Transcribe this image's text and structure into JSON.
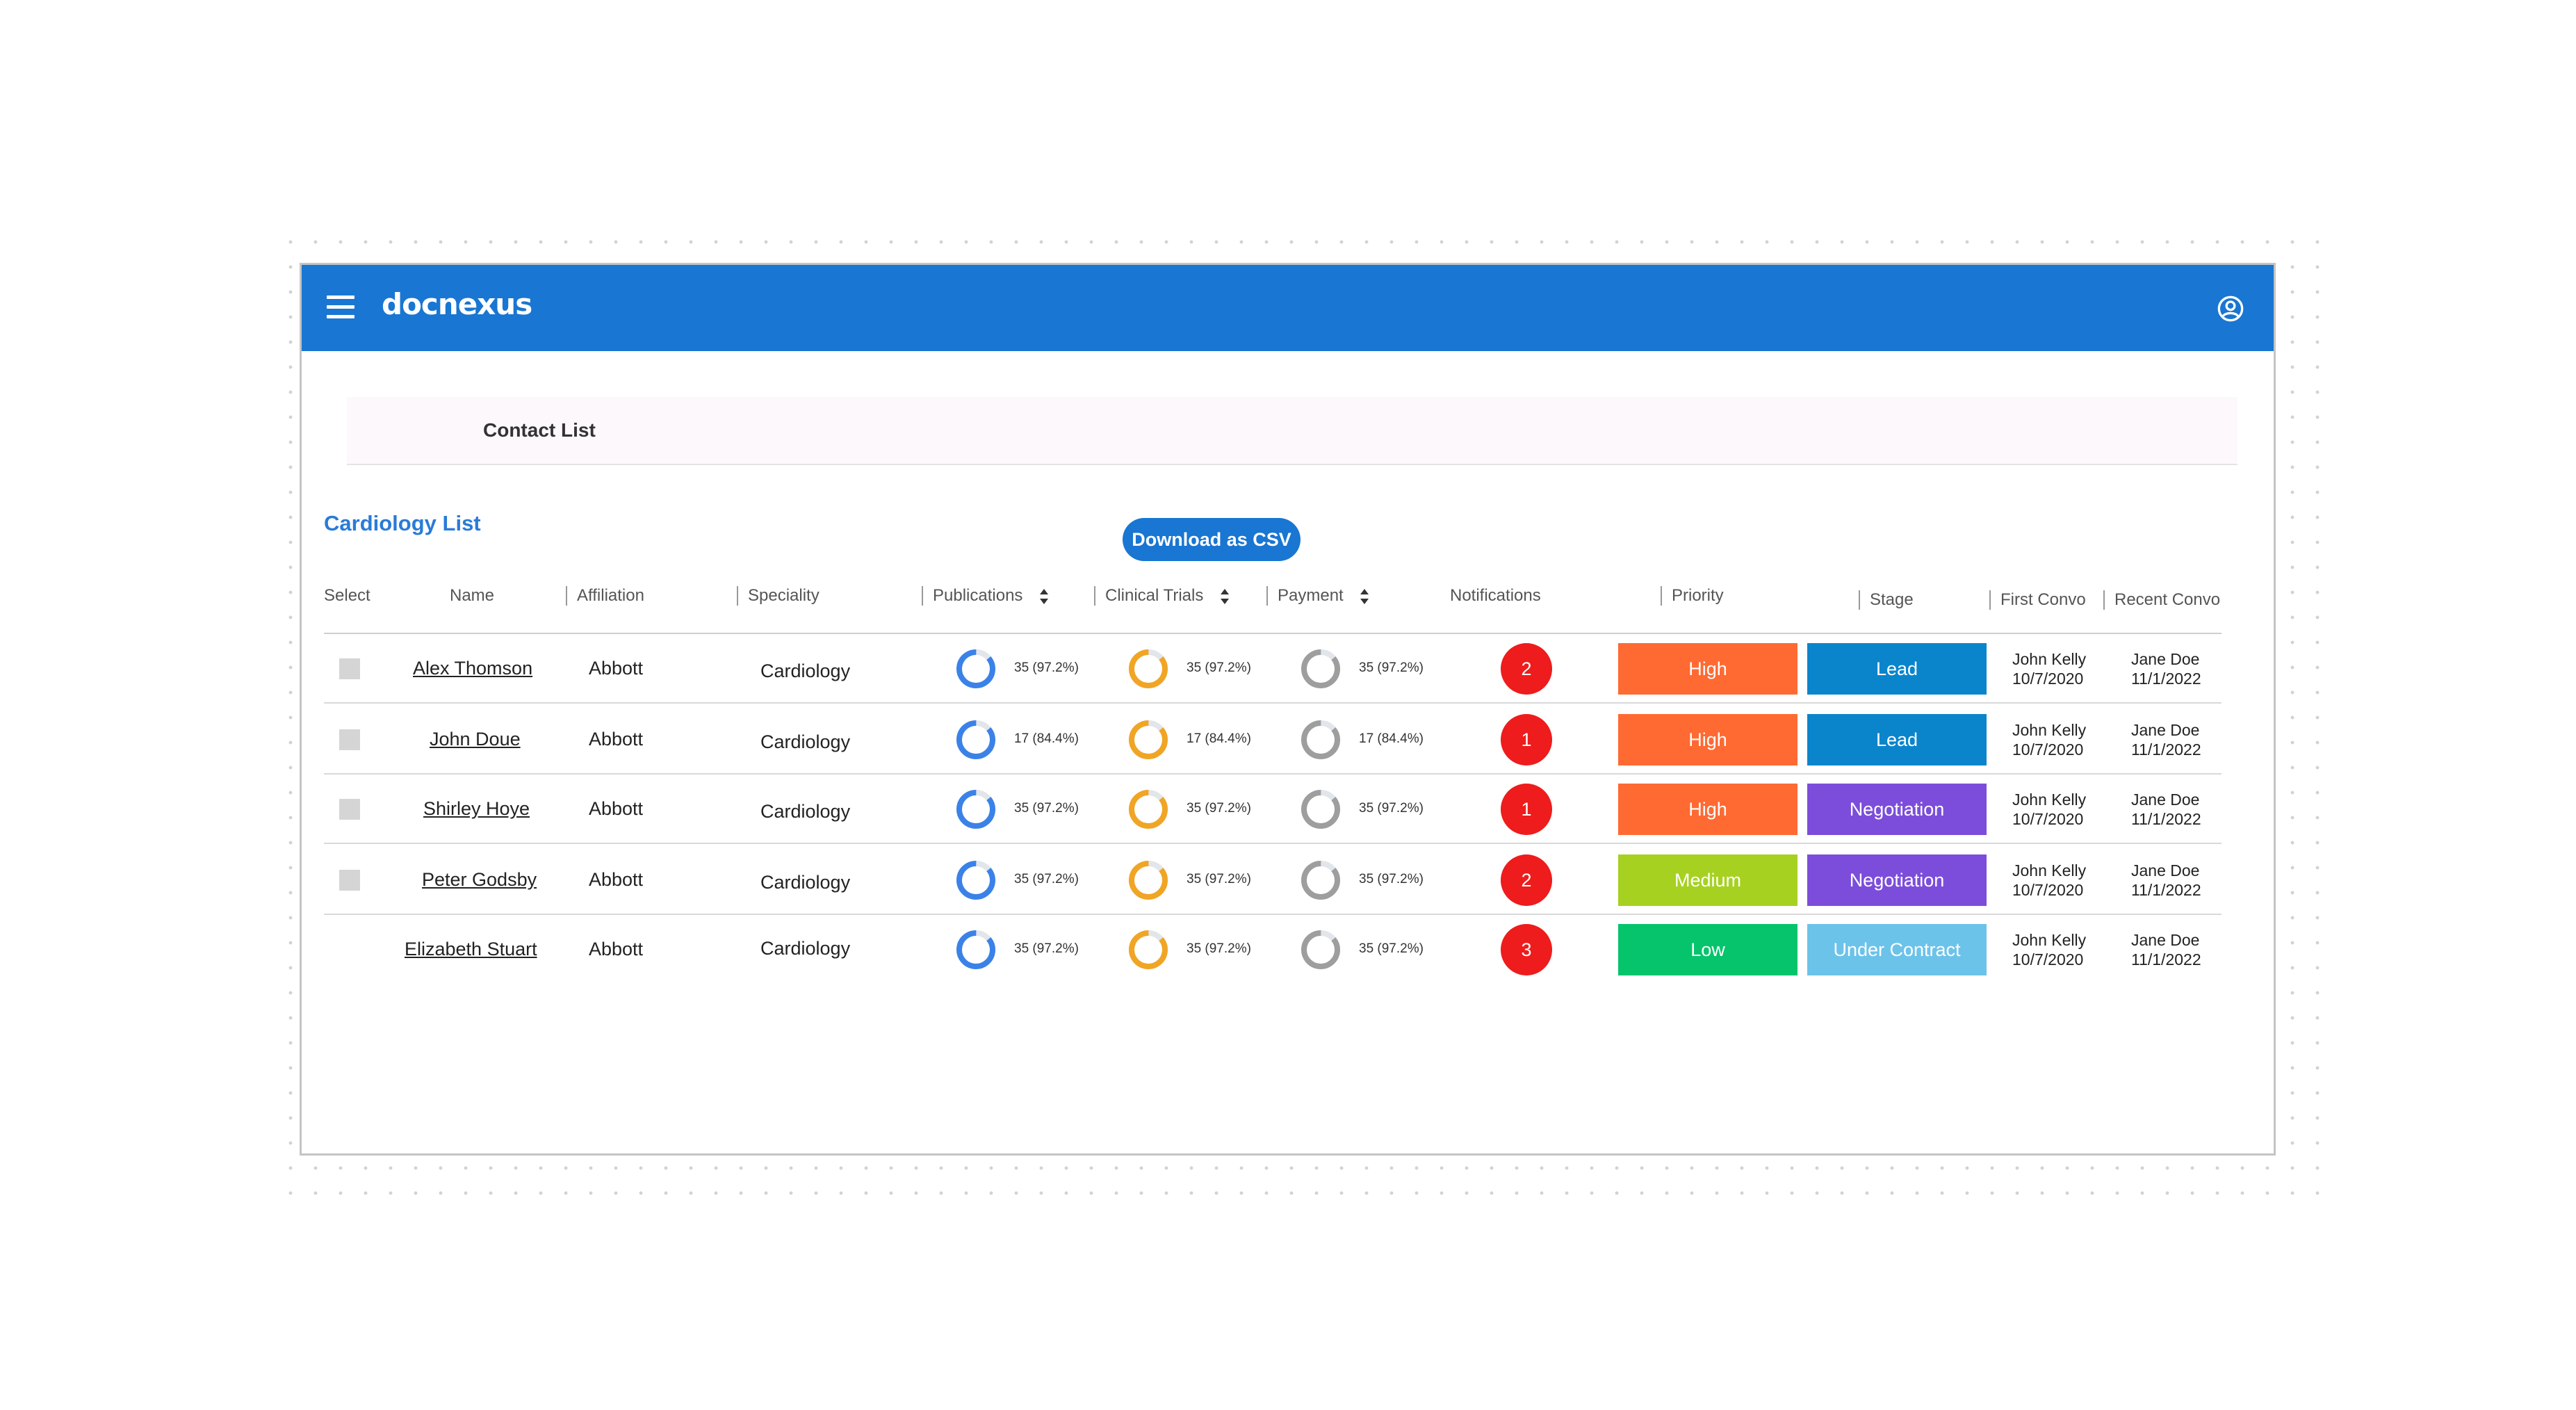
{
  "app": {
    "brand": "docnexus"
  },
  "breadcrumb": {
    "label": "Contact List"
  },
  "list": {
    "title": "Cardiology List",
    "download_label": "Download as CSV"
  },
  "columns": {
    "select": "Select",
    "name": "Name",
    "affiliation": "Affiliation",
    "speciality": "Speciality",
    "publications": "Publications",
    "clinical_trials": "Clinical Trials",
    "payment": "Payment",
    "notifications": "Notifications",
    "priority": "Priority",
    "stage": "Stage",
    "first_convo": "First Convo",
    "recent_convo": "Recent Convo"
  },
  "colors": {
    "appbar": "#1976d2",
    "publications_ring": "#3b82e8",
    "trials_ring": "#f0a524",
    "payment_ring": "#9e9e9e",
    "notification": "#ee1c1c",
    "priority_high": "#ff6a33",
    "priority_medium": "#a6d121",
    "priority_low": "#06c46b",
    "stage_lead": "#0a85cc",
    "stage_negotiation": "#7c4ddb",
    "stage_under_contract": "#6cc3ea"
  },
  "rows": [
    {
      "name": "Alex Thomson",
      "affiliation": "Abbott",
      "speciality": "Cardiology",
      "publications": "35 (97.2%)",
      "clinical_trials": "35 (97.2%)",
      "payment": "35 (97.2%)",
      "notifications": "2",
      "priority": "High",
      "stage": "Lead",
      "first_convo_name": "John Kelly",
      "first_convo_date": "10/7/2020",
      "recent_convo_name": "Jane Doe",
      "recent_convo_date": "11/1/2022"
    },
    {
      "name": "John Doue",
      "affiliation": "Abbott",
      "speciality": "Cardiology",
      "publications": "17 (84.4%)",
      "clinical_trials": "17 (84.4%)",
      "payment": "17 (84.4%)",
      "notifications": "1",
      "priority": "High",
      "stage": "Lead",
      "first_convo_name": "John Kelly",
      "first_convo_date": "10/7/2020",
      "recent_convo_name": "Jane Doe",
      "recent_convo_date": "11/1/2022"
    },
    {
      "name": "Shirley Hoye",
      "affiliation": "Abbott",
      "speciality": "Cardiology",
      "publications": "35 (97.2%)",
      "clinical_trials": "35 (97.2%)",
      "payment": "35 (97.2%)",
      "notifications": "1",
      "priority": "High",
      "stage": "Negotiation",
      "first_convo_name": "John Kelly",
      "first_convo_date": "10/7/2020",
      "recent_convo_name": "Jane Doe",
      "recent_convo_date": "11/1/2022"
    },
    {
      "name": "Peter Godsby",
      "affiliation": "Abbott",
      "speciality": "Cardiology",
      "publications": "35 (97.2%)",
      "clinical_trials": "35 (97.2%)",
      "payment": "35 (97.2%)",
      "notifications": "2",
      "priority": "Medium",
      "stage": "Negotiation",
      "first_convo_name": "John Kelly",
      "first_convo_date": "10/7/2020",
      "recent_convo_name": "Jane Doe",
      "recent_convo_date": "11/1/2022"
    },
    {
      "name": "Elizabeth  Stuart",
      "affiliation": "Abbott",
      "speciality": "Cardiology",
      "publications": "35 (97.2%)",
      "clinical_trials": "35 (97.2%)",
      "payment": "35 (97.2%)",
      "notifications": "3",
      "priority": "Low",
      "stage": "Under Contract",
      "first_convo_name": "John Kelly",
      "first_convo_date": "10/7/2020",
      "recent_convo_name": "Jane Doe",
      "recent_convo_date": "11/1/2022"
    }
  ]
}
